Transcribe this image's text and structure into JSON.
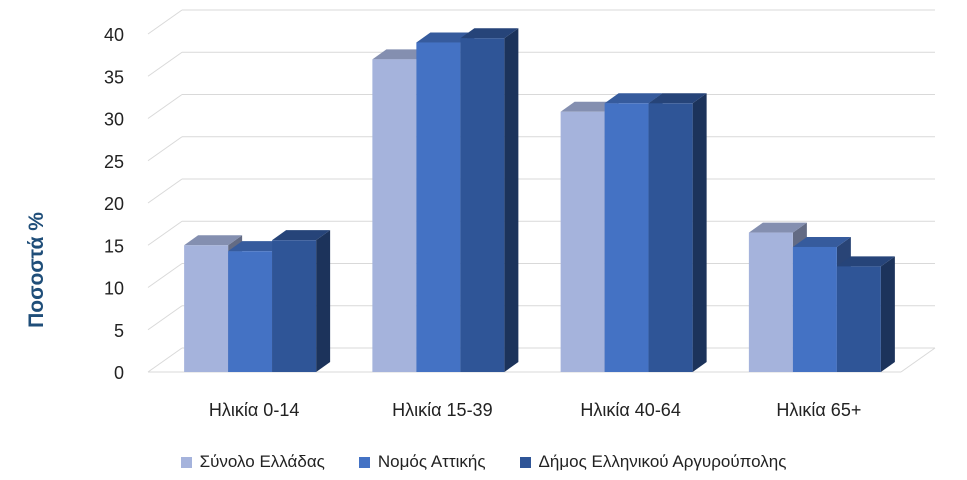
{
  "chart_data": {
    "type": "bar",
    "categories": [
      "Ηλικία 0-14",
      "Ηλικία 15-39",
      "Ηλικία 40-64",
      "Ηλικία 65+"
    ],
    "series": [
      {
        "name": "Σύνολο Ελλάδας",
        "values": [
          15.0,
          37.0,
          30.8,
          16.5
        ],
        "color": "#a5b3dc"
      },
      {
        "name": "Νομός Αττικής",
        "values": [
          14.3,
          39.0,
          31.8,
          14.8
        ],
        "color": "#4472c4"
      },
      {
        "name": "Δήμος Ελληνικού Αργυρούπολης",
        "values": [
          15.6,
          39.5,
          31.8,
          12.5
        ],
        "color": "#2f5597"
      }
    ],
    "ylabel": "Ποσοστά %",
    "ylim": [
      0,
      40
    ],
    "yticks": [
      "0",
      "5",
      "10",
      "15",
      "20",
      "25",
      "30",
      "35",
      "40"
    ],
    "grid": true,
    "legend_position": "bottom"
  }
}
